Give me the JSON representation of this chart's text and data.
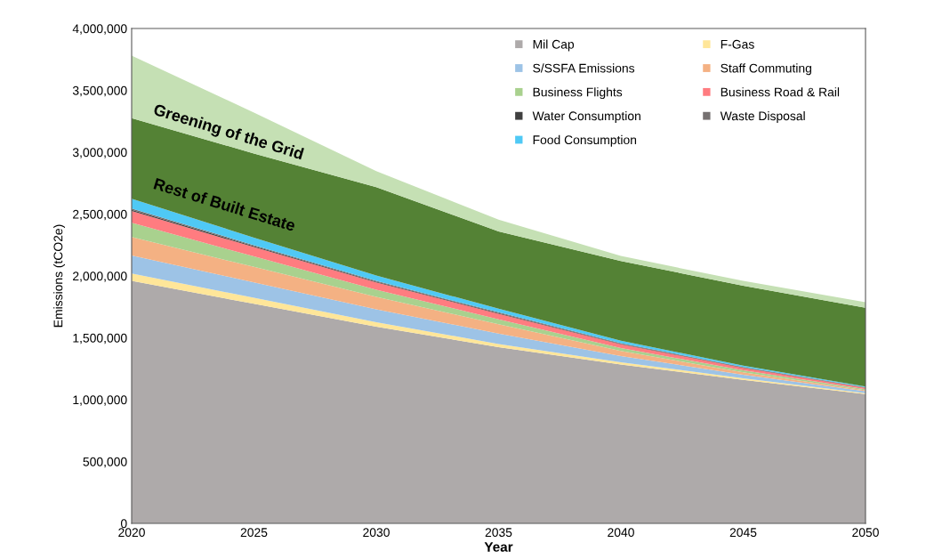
{
  "chart_data": {
    "type": "area",
    "stacked": true,
    "xlabel": "Year",
    "ylabel": "Emissions (tCO2e)",
    "x": [
      2020,
      2025,
      2030,
      2035,
      2040,
      2045,
      2050
    ],
    "xlim": [
      2020,
      2050
    ],
    "xticks": [
      2020,
      2025,
      2030,
      2035,
      2040,
      2045,
      2050
    ],
    "ylim": [
      0,
      4000000
    ],
    "yticks": [
      {
        "value": 0,
        "label": "0"
      },
      {
        "value": 500000,
        "label": "500,000"
      },
      {
        "value": 1000000,
        "label": "1,000,000"
      },
      {
        "value": 1500000,
        "label": "1,500,000"
      },
      {
        "value": 2000000,
        "label": "2,000,000"
      },
      {
        "value": 2500000,
        "label": "2,500,000"
      },
      {
        "value": 3000000,
        "label": "3,000,000"
      },
      {
        "value": 3500000,
        "label": "3,500,000"
      },
      {
        "value": 4000000,
        "label": "4,000,000"
      }
    ],
    "grid": false,
    "legend": "top right",
    "series": [
      {
        "name": "Mil Cap",
        "color": "#aeaaaa",
        "values": [
          1960000,
          1775000,
          1590000,
          1425000,
          1285000,
          1160000,
          1045000
        ]
      },
      {
        "name": "F-Gas",
        "color": "#ffe699",
        "values": [
          60000,
          48000,
          36000,
          25000,
          18000,
          12000,
          8000
        ]
      },
      {
        "name": "S/SSFA Emissions",
        "color": "#9dc3e6",
        "values": [
          145000,
          125000,
          105000,
          85000,
          50000,
          30000,
          15000
        ]
      },
      {
        "name": "Staff Commuting",
        "color": "#f4b183",
        "values": [
          150000,
          125000,
          100000,
          75000,
          40000,
          20000,
          8000
        ]
      },
      {
        "name": "Business Flights",
        "color": "#a9d18e",
        "values": [
          115000,
          85000,
          58000,
          40000,
          25000,
          15000,
          8000
        ]
      },
      {
        "name": "Business Road & Rail",
        "color": "#ff7c80",
        "values": [
          95000,
          75000,
          58000,
          45000,
          30000,
          20000,
          12000
        ]
      },
      {
        "name": "Water Consumption",
        "color": "#404040",
        "values": [
          10000,
          8000,
          6000,
          5000,
          4000,
          3000,
          2000
        ]
      },
      {
        "name": "Waste Disposal",
        "color": "#767171",
        "values": [
          10000,
          8000,
          7000,
          6000,
          5000,
          4000,
          3000
        ]
      },
      {
        "name": "Food Consumption",
        "color": "#4fc9f5",
        "values": [
          80000,
          61000,
          43000,
          29000,
          19000,
          11000,
          6000
        ]
      },
      {
        "color": "#548235",
        "values": [
          650000,
          680000,
          715000,
          625000,
          645000,
          645000,
          635000
        ]
      },
      {
        "color": "#c5e0b4",
        "values": [
          505000,
          330000,
          130000,
          95000,
          40000,
          40000,
          45000
        ]
      }
    ],
    "annotations": [
      "Greening of the Grid",
      "Rest of Built Estate"
    ]
  }
}
